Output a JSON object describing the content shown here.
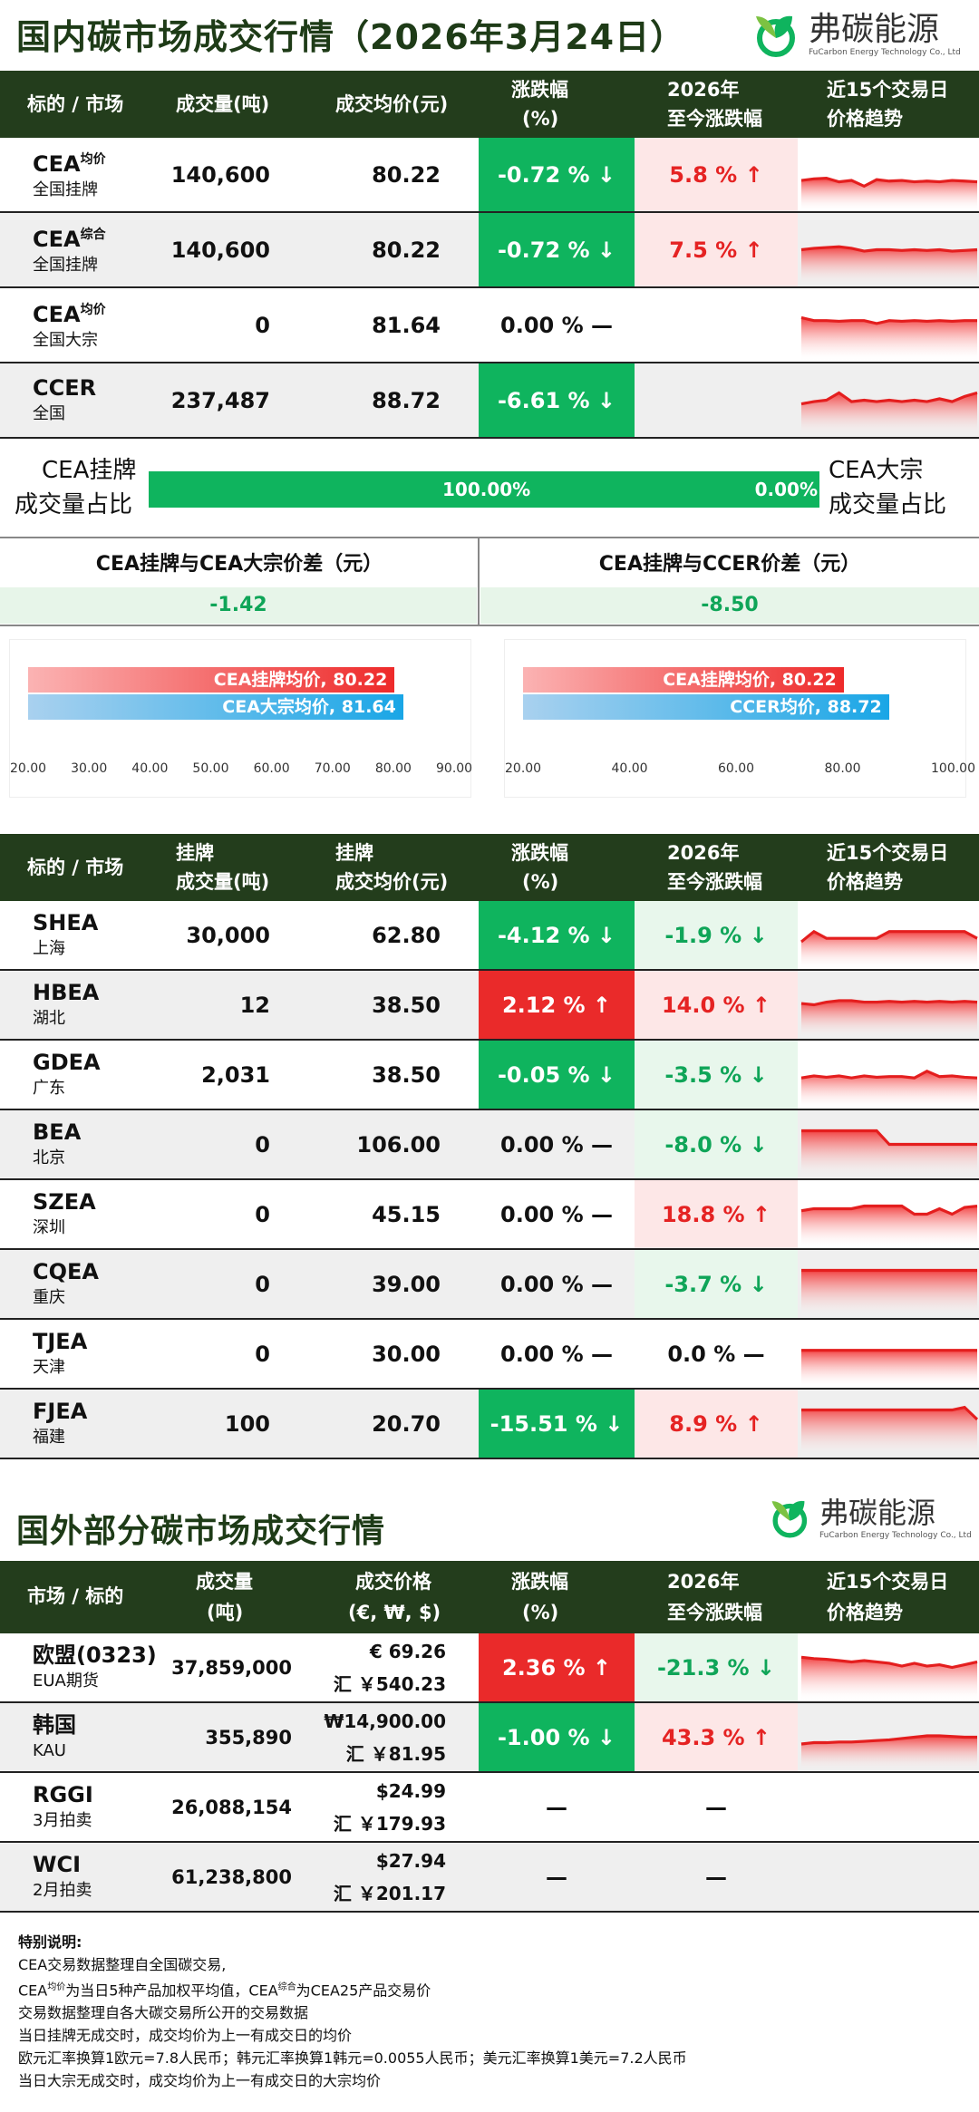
{
  "title": "国内碳市场成交行情（2026年3月24日）",
  "title2": "国外部分碳市场成交行情",
  "logo": {
    "cn": "弗碳能源",
    "en": "FuCarbon Energy Technology Co., Ltd"
  },
  "domestic_header": {
    "col1": "标的 / 市场",
    "col2": "成交量(吨)",
    "col3": "成交均价(元)",
    "col4a": "涨跌幅",
    "col4b": "(%)",
    "col5a": "2026年",
    "col5b": "至今涨跌幅",
    "col6a": "近15个交易日",
    "col6b": "价格趋势"
  },
  "domestic_rows": [
    {
      "name": "CEA",
      "sup": "均价",
      "sub": "全国挂牌",
      "volume": "140,600",
      "price": "80.22",
      "change": "-0.72 % ↓",
      "change_style": "g",
      "ytd": "5.8 % ↑",
      "ytd_style": "lr",
      "spark": [
        58,
        56,
        55,
        60,
        58,
        66,
        57,
        59,
        58,
        60,
        59,
        60,
        58,
        59,
        60
      ]
    },
    {
      "name": "CEA",
      "sup": "综合",
      "sub": "全国挂牌",
      "volume": "140,600",
      "price": "80.22",
      "change": "-0.72 % ↓",
      "change_style": "g",
      "ytd": "7.5 % ↑",
      "ytd_style": "lr",
      "spark": [
        50,
        48,
        47,
        46,
        48,
        52,
        50,
        50,
        51,
        50,
        51,
        50,
        52,
        51,
        50
      ]
    },
    {
      "name": "CEA",
      "sup": "均价",
      "sub": "全国大宗",
      "volume": "0",
      "price": "81.64",
      "change": "0.00 % —",
      "change_style": "plain",
      "ytd": "",
      "ytd_style": "plain",
      "spark": [
        40,
        44,
        44,
        45,
        44,
        44,
        48,
        44,
        45,
        44,
        45,
        44,
        45,
        44,
        44
      ]
    },
    {
      "name": "CCER",
      "sup": "",
      "sub": "全国",
      "volume": "237,487",
      "price": "88.72",
      "change": "-6.61 % ↓",
      "change_style": "g",
      "ytd": "",
      "ytd_style": "plain",
      "spark": [
        55,
        52,
        50,
        40,
        52,
        50,
        52,
        50,
        52,
        50,
        52,
        48,
        52,
        45,
        40
      ]
    }
  ],
  "ratio": {
    "left_a": "CEA挂牌",
    "left_b": "成交量占比",
    "right_a": "CEA大宗",
    "right_b": "成交量占比",
    "left_val": "100.00%",
    "right_val": "0.00%",
    "left_fraction": 1.0
  },
  "diffs": {
    "left_label": "CEA挂牌与CEA大宗价差（元）",
    "left_value": "-1.42",
    "right_label": "CEA挂牌与CCER价差（元）",
    "right_value": "-8.50"
  },
  "chart_data": [
    {
      "type": "bar",
      "categories": [
        "CEA挂牌均价",
        "CEA大宗均价"
      ],
      "labels": [
        "CEA挂牌均价, 80.22",
        "CEA大宗均价, 81.64"
      ],
      "values": [
        80.22,
        81.64
      ],
      "xlim": [
        20,
        90
      ],
      "ticks": [
        "20.00",
        "30.00",
        "40.00",
        "50.00",
        "60.00",
        "70.00",
        "80.00",
        "90.00"
      ]
    },
    {
      "type": "bar",
      "categories": [
        "CEA挂牌均价",
        "CCER均价"
      ],
      "labels": [
        "CEA挂牌均价, 80.22",
        "CCER均价, 88.72"
      ],
      "values": [
        80.22,
        88.72
      ],
      "xlim": [
        20,
        100
      ],
      "ticks": [
        "20.00",
        "40.00",
        "60.00",
        "80.00",
        "100.00"
      ]
    }
  ],
  "pilot_header": {
    "col1": "标的 / 市场",
    "col2a": "挂牌",
    "col2b": "成交量(吨)",
    "col3a": "挂牌",
    "col3b": "成交均价(元)",
    "col4a": "涨跌幅",
    "col4b": "(%)",
    "col5a": "2026年",
    "col5b": "至今涨跌幅",
    "col6a": "近15个交易日",
    "col6b": "价格趋势"
  },
  "pilot_rows": [
    {
      "name": "SHEA",
      "sub": "上海",
      "volume": "30,000",
      "price": "62.80",
      "change": "-4.12 % ↓",
      "change_style": "g",
      "ytd": "-1.9 % ↓",
      "ytd_style": "lg",
      "spark": [
        60,
        45,
        55,
        55,
        55,
        55,
        55,
        45,
        45,
        45,
        45,
        45,
        45,
        45,
        55
      ]
    },
    {
      "name": "HBEA",
      "sub": "湖北",
      "volume": "12",
      "price": "38.50",
      "change": "2.12 % ↑",
      "change_style": "r",
      "ytd": "14.0 % ↑",
      "ytd_style": "lr",
      "spark": [
        48,
        50,
        46,
        44,
        44,
        46,
        46,
        45,
        46,
        45,
        46,
        45,
        46,
        45,
        46
      ]
    },
    {
      "name": "GDEA",
      "sub": "广东",
      "volume": "2,031",
      "price": "38.50",
      "change": "-0.05 % ↓",
      "change_style": "g",
      "ytd": "-3.5 % ↓",
      "ytd_style": "lg",
      "spark": [
        55,
        52,
        54,
        52,
        55,
        52,
        54,
        53,
        53,
        55,
        45,
        53,
        52,
        54,
        55
      ]
    },
    {
      "name": "BEA",
      "sub": "北京",
      "volume": "0",
      "price": "106.00",
      "change": "0.00 % —",
      "change_style": "plain",
      "ytd": "-8.0 % ↓",
      "ytd_style": "lg",
      "spark": [
        30,
        30,
        30,
        30,
        30,
        30,
        30,
        50,
        50,
        50,
        50,
        50,
        50,
        50,
        50
      ]
    },
    {
      "name": "SZEA",
      "sub": "深圳",
      "volume": "0",
      "price": "45.15",
      "change": "0.00 % —",
      "change_style": "plain",
      "ytd": "18.8 % ↑",
      "ytd_style": "lr",
      "spark": [
        45,
        42,
        42,
        42,
        42,
        38,
        38,
        38,
        38,
        50,
        50,
        42,
        50,
        40,
        38
      ]
    },
    {
      "name": "CQEA",
      "sub": "重庆",
      "volume": "0",
      "price": "39.00",
      "change": "0.00 % —",
      "change_style": "plain",
      "ytd": "-3.7 % ↓",
      "ytd_style": "lg",
      "spark": [
        30,
        30,
        30,
        30,
        30,
        30,
        30,
        30,
        30,
        30,
        30,
        30,
        30,
        30,
        30
      ]
    },
    {
      "name": "TJEA",
      "sub": "天津",
      "volume": "0",
      "price": "30.00",
      "change": "0.00 % —",
      "change_style": "plain",
      "ytd": "0.0 % —",
      "ytd_style": "plain",
      "spark": [
        45,
        45,
        45,
        45,
        45,
        45,
        45,
        45,
        45,
        45,
        45,
        45,
        45,
        45,
        45
      ]
    },
    {
      "name": "FJEA",
      "sub": "福建",
      "volume": "100",
      "price": "20.70",
      "change": "-15.51 % ↓",
      "change_style": "g",
      "ytd": "8.9 % ↑",
      "ytd_style": "lr",
      "spark": [
        30,
        30,
        30,
        30,
        30,
        30,
        30,
        30,
        30,
        30,
        30,
        30,
        30,
        26,
        44
      ]
    }
  ],
  "intl_header": {
    "col1": "市场 / 标的",
    "col2a": "成交量",
    "col2b": "(吨)",
    "col3a": "成交价格",
    "col3b": "(€, ₩, $)",
    "col4a": "涨跌幅",
    "col4b": "(%)",
    "col5a": "2026年",
    "col5b": "至今涨跌幅",
    "col6a": "近15个交易日",
    "col6b": "价格趋势"
  },
  "intl_rows": [
    {
      "name": "欧盟(0323)",
      "sub": "EUA期货",
      "volume": "37,859,000",
      "price": "€ 69.26",
      "cny": "汇 ￥540.23",
      "change": "2.36 % ↑",
      "change_style": "r",
      "ytd": "-21.3 % ↓",
      "ytd_style": "lg",
      "spark": [
        35,
        37,
        38,
        40,
        42,
        40,
        42,
        44,
        48,
        44,
        48,
        46,
        50,
        46,
        42
      ]
    },
    {
      "name": "韩国",
      "sub": "KAU",
      "volume": "355,890",
      "price": "₩14,900.00",
      "cny": "汇 ￥81.95",
      "change": "-1.00 % ↓",
      "change_style": "g",
      "ytd": "43.3 % ↑",
      "ytd_style": "lr",
      "spark": [
        60,
        58,
        58,
        57,
        57,
        56,
        55,
        54,
        52,
        50,
        48,
        48,
        49,
        50,
        50
      ]
    },
    {
      "name": "RGGI",
      "sub": "3月拍卖",
      "volume": "26,088,154",
      "price": "$24.99",
      "cny": "汇 ￥179.93",
      "change": "—",
      "change_style": "plain",
      "ytd": "—",
      "ytd_style": "plain",
      "spark": []
    },
    {
      "name": "WCI",
      "sub": "2月拍卖",
      "volume": "61,238,800",
      "price": "$27.94",
      "cny": "汇 ￥201.17",
      "change": "—",
      "change_style": "plain",
      "ytd": "—",
      "ytd_style": "plain",
      "spark": []
    }
  ],
  "notes": {
    "title": "特别说明:",
    "l1": "CEA交易数据整理自全国碳交易,",
    "l2a": "CEA",
    "l2sup1": "均价",
    "l2b": "为当日5种产品加权平均值，CEA",
    "l2sup2": "综合",
    "l2c": "为CEA25产品交易价",
    "l3": "交易数据整理自各大碳交易所公开的交易数据",
    "l4": "当日挂牌无成交时，成交均价为上一有成交日的均价",
    "l5": "欧元汇率换算1欧元=7.8人民币；韩元汇率换算1韩元=0.0055人民币；美元汇率换算1美元=7.2人民币",
    "l6": "当日大宗无成交时，成交均价为上一有成交日的大宗均价"
  },
  "colors": {
    "dark_green": "#233d1c",
    "green": "#0fb45e",
    "red": "#ea2a2a",
    "light_green": "#e8f7ec",
    "light_red": "#fde7e7"
  }
}
